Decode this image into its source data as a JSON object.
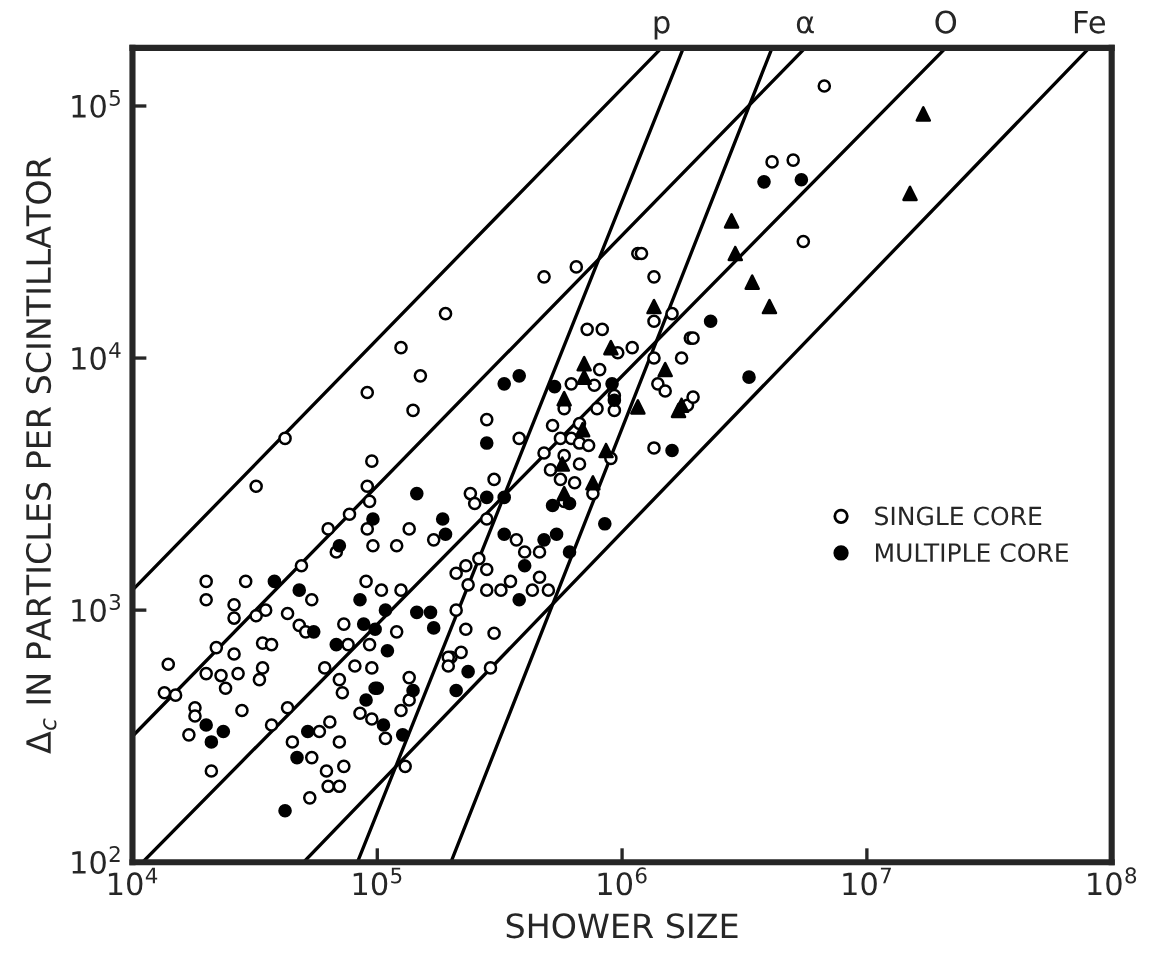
{
  "chart_data": {
    "type": "scatter",
    "xlabel": "SHOWER SIZE",
    "ylabel": "Δ$_{c}$ IN PARTICLES PER SCINTILLATOR",
    "log": "xy",
    "xlim": [
      10000,
      100000000
    ],
    "ylim": [
      100,
      170000
    ],
    "xticks": [
      {
        "value": 10000,
        "label": "10$^{4}$"
      },
      {
        "value": 100000,
        "label": "10$^{5}$"
      },
      {
        "value": 1000000,
        "label": "10$^{6}$"
      },
      {
        "value": 10000000,
        "label": "10$^{7}$"
      },
      {
        "value": 100000000,
        "label": "10$^{8}$"
      }
    ],
    "yticks": [
      {
        "value": 100,
        "label": "10$^{2}$"
      },
      {
        "value": 1000,
        "label": "10$^{3}$"
      },
      {
        "value": 10000,
        "label": "10$^{4}$"
      },
      {
        "value": 100000,
        "label": "10$^{5}$"
      }
    ],
    "grid": false,
    "legend": "right",
    "series": [
      {
        "name": "SINGLE CORE",
        "marker": "circle",
        "color": "#ffffff",
        "x": [
          190000,
          125000,
          150000,
          91000,
          140000,
          42000,
          32000,
          95000,
          91000,
          93000,
          77000,
          63000,
          91000,
          135000,
          96000,
          120000,
          170000,
          68000,
          49000,
          20000,
          29000,
          35000,
          20000,
          26000,
          43000,
          54000,
          26000,
          32000,
          48000,
          51000,
          73000,
          90000,
          104000,
          125000,
          120000,
          93000,
          76000,
          34000,
          37000,
          22000,
          26000,
          14000,
          61000,
          34000,
          23000,
          20000,
          27000,
          70000,
          81000,
          95000,
          135000,
          200000,
          24000,
          33000,
          13500,
          15000,
          72000,
          98000,
          135000,
          18000,
          18000,
          28000,
          43000,
          85000,
          95000,
          125000,
          17000,
          37000,
          58000,
          64000,
          70000,
          108000,
          45000,
          54000,
          62000,
          73000,
          63000,
          70000,
          53000,
          21000,
          130000,
          480000,
          650000,
          1160000,
          1350000,
          280000,
          380000,
          720000,
          830000,
          1100000,
          960000,
          810000,
          1350000,
          1600000,
          1900000,
          1750000,
          1350000,
          770000,
          930000,
          790000,
          930000,
          620000,
          1400000,
          1500000,
          1850000,
          580000,
          670000,
          560000,
          620000,
          670000,
          730000,
          520000,
          480000,
          580000,
          670000,
          640000,
          580000,
          510000,
          560000,
          760000,
          900000,
          1350000,
          300000,
          240000,
          250000,
          280000,
          370000,
          400000,
          460000,
          230000,
          210000,
          260000,
          280000,
          235000,
          280000,
          320000,
          350000,
          430000,
          500000,
          460000,
          210000,
          230000,
          300000,
          195000,
          195000,
          290000,
          220000,
          6700000,
          4100000,
          5000000,
          5500000,
          1200000,
          1950000,
          1950000
        ],
        "values": [
          15000,
          11000,
          8500,
          7300,
          6200,
          4800,
          3100,
          3900,
          3100,
          2700,
          2400,
          2100,
          2100,
          2100,
          1800,
          1800,
          1900,
          1700,
          1500,
          1300,
          1300,
          1000,
          1100,
          1050,
          970,
          1100,
          930,
          950,
          870,
          820,
          880,
          1300,
          1200,
          1200,
          820,
          730,
          730,
          740,
          730,
          710,
          670,
          610,
          590,
          590,
          550,
          560,
          560,
          530,
          600,
          590,
          540,
          650,
          490,
          530,
          470,
          460,
          470,
          490,
          440,
          410,
          380,
          400,
          410,
          390,
          370,
          400,
          320,
          350,
          330,
          360,
          300,
          310,
          300,
          260,
          230,
          240,
          200,
          200,
          180,
          230,
          240,
          21000,
          23000,
          26000,
          21000,
          5700,
          4800,
          13000,
          13000,
          11000,
          10500,
          9000,
          14000,
          15000,
          12000,
          10000,
          10000,
          7800,
          7100,
          6300,
          6200,
          7900,
          7900,
          7400,
          6500,
          6300,
          5500,
          4800,
          4800,
          4600,
          4500,
          5400,
          4200,
          4100,
          3800,
          3200,
          2700,
          3600,
          3300,
          2900,
          4000,
          4400,
          3300,
          2900,
          2650,
          2300,
          1900,
          1700,
          1700,
          1500,
          1400,
          1600,
          1450,
          1260,
          1200,
          1200,
          1300,
          1200,
          1200,
          1350,
          1000,
          840,
          810,
          650,
          600,
          590,
          680,
          120000,
          60000,
          61000,
          29000,
          26000,
          12000,
          7000
        ]
      },
      {
        "name": "MULTIPLE CORE",
        "marker": "circle",
        "color": "#000000",
        "x": [
          145000,
          96000,
          185000,
          70000,
          38000,
          48000,
          85000,
          55000,
          108000,
          145000,
          165000,
          88000,
          98000,
          68000,
          110000,
          170000,
          20000,
          21000,
          23500,
          90000,
          106000,
          127000,
          47000,
          52000,
          42000,
          100000,
          140000,
          330000,
          380000,
          280000,
          530000,
          910000,
          930000,
          850000,
          1600000,
          610000,
          520000,
          190000,
          330000,
          540000,
          480000,
          610000,
          400000,
          380000,
          280000,
          330000,
          235000,
          210000,
          3800000,
          5400000,
          2300000,
          3300000
        ],
        "values": [
          2900,
          2300,
          2300,
          1800,
          1300,
          1200,
          1100,
          820,
          1000,
          980,
          980,
          880,
          840,
          730,
          690,
          850,
          350,
          300,
          330,
          440,
          350,
          320,
          260,
          330,
          160,
          490,
          480,
          7900,
          8500,
          4600,
          7700,
          7900,
          6800,
          2200,
          4300,
          2650,
          2600,
          2000,
          2000,
          2000,
          1900,
          1700,
          1500,
          1100,
          2800,
          2800,
          570,
          480,
          50000,
          51000,
          14000,
          8400
        ]
      },
      {
        "marker": "triangle",
        "color": "#000000",
        "x": [
          1350000,
          900000,
          700000,
          700000,
          580000,
          690000,
          570000,
          580000,
          760000,
          860000,
          1160000,
          1500000,
          1750000,
          17000000,
          15000000,
          2800000,
          2900000,
          3400000,
          4000000,
          1700000
        ],
        "values": [
          16000,
          11000,
          9500,
          8400,
          6900,
          5200,
          3800,
          2900,
          3200,
          4300,
          6400,
          9000,
          6500,
          93000,
          45000,
          35000,
          26000,
          20000,
          16000,
          6200
        ]
      },
      {
        "name": "p",
        "type": "line",
        "color": "#000000",
        "line_style": "solid",
        "marker": "none",
        "x": [
          10000,
          1450000
        ],
        "values": [
          1200,
          170000
        ]
      },
      {
        "name": "α",
        "type": "line",
        "color": "#000000",
        "line_style": "solid",
        "marker": "none",
        "x": [
          10000,
          5600000
        ],
        "values": [
          316,
          170000
        ]
      },
      {
        "name": "O",
        "type": "line",
        "color": "#000000",
        "line_style": "solid",
        "marker": "none",
        "x": [
          11000,
          21000000
        ],
        "values": [
          100,
          170000
        ]
      },
      {
        "name": "Fe",
        "type": "line",
        "color": "#000000",
        "line_style": "solid",
        "marker": "none",
        "x": [
          50000,
          81000000
        ],
        "values": [
          100,
          170000
        ]
      },
      {
        "type": "line",
        "color": "#000000",
        "line_style": "solid",
        "marker": "none",
        "x": [
          83000,
          1780000
        ],
        "values": [
          100,
          170000
        ]
      },
      {
        "type": "line",
        "color": "#000000",
        "line_style": "solid",
        "marker": "none",
        "x": [
          200000,
          4100000
        ],
        "values": [
          100,
          170000
        ]
      }
    ]
  }
}
